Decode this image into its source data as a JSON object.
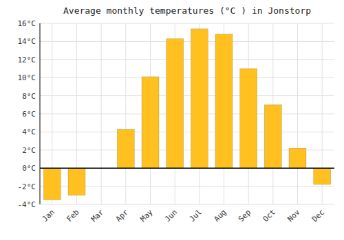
{
  "chart_data": {
    "type": "bar",
    "title": "Average monthly temperatures (°C ) in Jonstorp",
    "categories": [
      "Jan",
      "Feb",
      "Mar",
      "Apr",
      "May",
      "Jun",
      "Jul",
      "Aug",
      "Sep",
      "Oct",
      "Nov",
      "Dec"
    ],
    "values": [
      -3.5,
      -3.0,
      0.0,
      4.3,
      10.1,
      14.3,
      15.4,
      14.8,
      11.0,
      7.0,
      2.2,
      -1.8
    ],
    "color": "#FFC020",
    "ylim": [
      -4,
      16
    ],
    "yticks": [
      {
        "value": -4,
        "label": "-4°C"
      },
      {
        "value": -2,
        "label": "-2°C"
      },
      {
        "value": 0,
        "label": "0°C"
      },
      {
        "value": 2,
        "label": "2°C"
      },
      {
        "value": 4,
        "label": "4°C"
      },
      {
        "value": 6,
        "label": "6°C"
      },
      {
        "value": 8,
        "label": "8°C"
      },
      {
        "value": 10,
        "label": "10°C"
      },
      {
        "value": 12,
        "label": "12°C"
      },
      {
        "value": 14,
        "label": "14°C"
      },
      {
        "value": 16,
        "label": "16°C"
      }
    ],
    "grid": true
  }
}
